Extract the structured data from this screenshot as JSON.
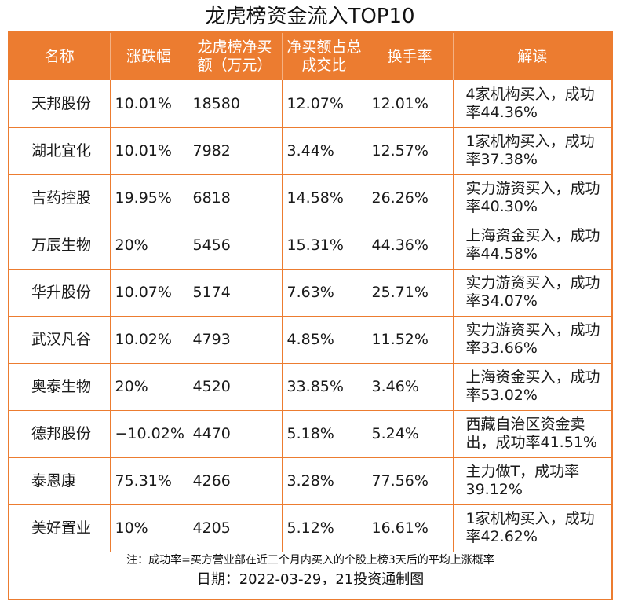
{
  "title": "龙虎榜资金流入TOP10",
  "columns": [
    "名称",
    "涨跌幅",
    "龙虎榜净买额（万元）",
    "净买额占总成交比",
    "换手率",
    "解读"
  ],
  "rows": [
    {
      "name": "天邦股份",
      "change": "10.01%",
      "net_buy": "18580",
      "ratio": "12.07%",
      "turnover": "12.01%",
      "comment": "4家机构买入，成功率44.36%"
    },
    {
      "name": "湖北宜化",
      "change": "10.01%",
      "net_buy": "7982",
      "ratio": "3.44%",
      "turnover": "12.57%",
      "comment": "1家机构买入，成功率37.38%"
    },
    {
      "name": "吉药控股",
      "change": "19.95%",
      "net_buy": "6818",
      "ratio": "14.58%",
      "turnover": "26.26%",
      "comment": "实力游资买入，成功率40.30%"
    },
    {
      "name": "万辰生物",
      "change": "20%",
      "net_buy": "5456",
      "ratio": "15.31%",
      "turnover": "44.36%",
      "comment": "上海资金买入，成功率44.58%"
    },
    {
      "name": "华升股份",
      "change": "10.07%",
      "net_buy": "5174",
      "ratio": "7.63%",
      "turnover": "25.71%",
      "comment": "实力游资买入，成功率34.07%"
    },
    {
      "name": "武汉凡谷",
      "change": "10.02%",
      "net_buy": "4793",
      "ratio": "4.85%",
      "turnover": "11.52%",
      "comment": "实力游资买入，成功率33.66%"
    },
    {
      "name": "奥泰生物",
      "change": "20%",
      "net_buy": "4520",
      "ratio": "33.85%",
      "turnover": "3.46%",
      "comment": "上海资金买入，成功率53.02%"
    },
    {
      "name": "德邦股份",
      "change": "−10.02%",
      "net_buy": "4470",
      "ratio": "5.18%",
      "turnover": "5.24%",
      "comment": "西藏自治区资金卖出，成功率41.51%"
    },
    {
      "name": "泰恩康",
      "change": "75.31%",
      "net_buy": "4266",
      "ratio": "3.28%",
      "turnover": "77.56%",
      "comment": "主力做T，成功率39.12%"
    },
    {
      "name": "美好置业",
      "change": "10%",
      "net_buy": "4205",
      "ratio": "5.12%",
      "turnover": "16.61%",
      "comment": "1家机构买入，成功率42.62%"
    }
  ],
  "note": "注：成功率=买方营业部在近三个月内买入的个股上榜3天后的平均上涨概率",
  "date_line": "日期：2022-03-29，21投资通制图",
  "colors": {
    "accent": "#ec7c30",
    "header_text": "#ffffff"
  }
}
